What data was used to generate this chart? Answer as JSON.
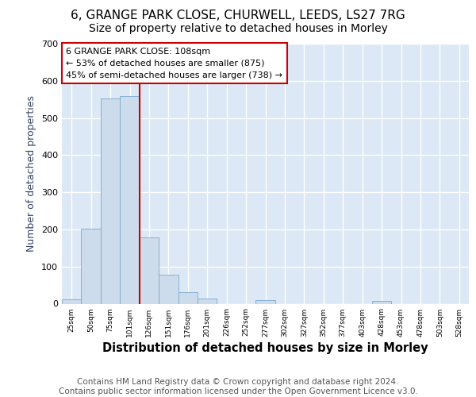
{
  "title1": "6, GRANGE PARK CLOSE, CHURWELL, LEEDS, LS27 7RG",
  "title2": "Size of property relative to detached houses in Morley",
  "xlabel": "Distribution of detached houses by size in Morley",
  "ylabel": "Number of detached properties",
  "bin_labels": [
    "25sqm",
    "50sqm",
    "75sqm",
    "101sqm",
    "126sqm",
    "151sqm",
    "176sqm",
    "201sqm",
    "226sqm",
    "252sqm",
    "277sqm",
    "302sqm",
    "327sqm",
    "352sqm",
    "377sqm",
    "403sqm",
    "428sqm",
    "453sqm",
    "478sqm",
    "503sqm",
    "528sqm"
  ],
  "bar_heights": [
    12,
    203,
    553,
    560,
    178,
    78,
    30,
    13,
    0,
    0,
    10,
    0,
    0,
    0,
    0,
    0,
    8,
    0,
    0,
    0,
    0
  ],
  "bar_color": "#cddcec",
  "bar_edge_color": "#7aa8cc",
  "annotation_text": "6 GRANGE PARK CLOSE: 108sqm\n← 53% of detached houses are smaller (875)\n45% of semi-detached houses are larger (738) →",
  "footer_text": "Contains HM Land Registry data © Crown copyright and database right 2024.\nContains public sector information licensed under the Open Government Licence v3.0.",
  "ylim": [
    0,
    700
  ],
  "yticks": [
    0,
    100,
    200,
    300,
    400,
    500,
    600,
    700
  ],
  "background_color": "#dce8f5",
  "grid_color": "#ffffff",
  "title1_fontsize": 11,
  "title2_fontsize": 10,
  "xlabel_fontsize": 10.5,
  "ylabel_fontsize": 9,
  "footer_fontsize": 7.5,
  "red_line_x": 3.5
}
